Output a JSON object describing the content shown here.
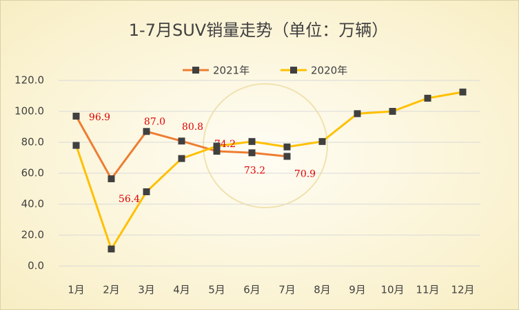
{
  "chart_data": {
    "type": "line",
    "title": "1-7月SUV销量走势（单位：万辆）",
    "categories": [
      "1月",
      "2月",
      "3月",
      "4月",
      "5月",
      "6月",
      "7月",
      "8月",
      "9月",
      "10月",
      "11月",
      "12月"
    ],
    "series": [
      {
        "name": "2021年",
        "color": "#ed7d31",
        "values": [
          96.9,
          56.4,
          87.0,
          80.8,
          74.2,
          73.2,
          70.9,
          null,
          null,
          null,
          null,
          null
        ],
        "value_labels": [
          "96.9",
          "56.4",
          "87.0",
          "80.8",
          "74.2",
          "73.2",
          "70.9",
          null,
          null,
          null,
          null,
          null
        ]
      },
      {
        "name": "2020年",
        "color": "#ffc000",
        "values": [
          78,
          11,
          48,
          69.5,
          77.5,
          80.5,
          77,
          80.5,
          98.5,
          100,
          108.5,
          112.5
        ]
      }
    ],
    "ylim": [
      0,
      120
    ],
    "yticks": [
      {
        "value": 0,
        "label": "0.0"
      },
      {
        "value": 20,
        "label": "20.0"
      },
      {
        "value": 40,
        "label": "40.0"
      },
      {
        "value": 60,
        "label": "60.0"
      },
      {
        "value": 80,
        "label": "80.0"
      },
      {
        "value": 100,
        "label": "100.0"
      },
      {
        "value": 120,
        "label": "120.0"
      }
    ],
    "grid": true,
    "legend": "top"
  }
}
